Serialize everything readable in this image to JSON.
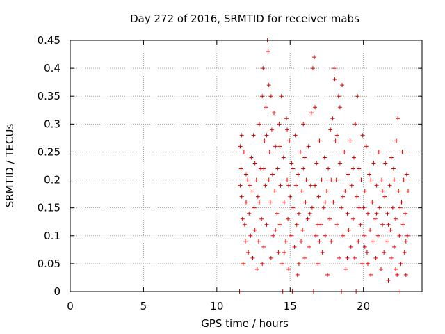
{
  "chart_data": {
    "type": "scatter",
    "title": "Day 272 of 2016, SRMTID for receiver mabs",
    "xlabel": "GPS time / hours",
    "ylabel": "SRMTID / TECUs",
    "xlim": [
      0,
      24
    ],
    "ylim": [
      0,
      0.45
    ],
    "x_ticks": [
      0,
      5,
      10,
      15,
      20
    ],
    "y_ticks": [
      0,
      0.05,
      0.1,
      0.15,
      0.2,
      0.25,
      0.3,
      0.35,
      0.4,
      0.45
    ],
    "x_tick_labels": [
      "0",
      "5",
      "10",
      "15",
      "20"
    ],
    "y_tick_labels": [
      "0",
      "0.05",
      "0.1",
      "0.15",
      "0.2",
      "0.25",
      "0.3",
      "0.35",
      "0.4",
      "0.45"
    ],
    "grid": true,
    "marker": "plus",
    "color": "#e00000",
    "series": [
      {
        "points": [
          [
            11.55,
            0.0
          ],
          [
            14.5,
            0.0
          ],
          [
            15.15,
            0.0
          ],
          [
            16.6,
            0.0
          ],
          [
            18.5,
            0.0
          ],
          [
            19.5,
            0.0
          ],
          [
            22.5,
            0.0
          ],
          [
            11.6,
            0.19
          ],
          [
            11.65,
            0.22
          ],
          [
            11.7,
            0.17
          ],
          [
            11.75,
            0.13
          ],
          [
            11.8,
            0.05
          ],
          [
            11.85,
            0.25
          ],
          [
            11.9,
            0.12
          ],
          [
            11.95,
            0.09
          ],
          [
            12.0,
            0.16
          ],
          [
            12.1,
            0.2
          ],
          [
            12.15,
            0.07
          ],
          [
            12.2,
            0.14
          ],
          [
            12.3,
            0.1
          ],
          [
            12.35,
            0.24
          ],
          [
            12.4,
            0.18
          ],
          [
            12.45,
            0.06
          ],
          [
            12.5,
            0.28
          ],
          [
            12.55,
            0.15
          ],
          [
            12.6,
            0.11
          ],
          [
            12.7,
            0.2
          ],
          [
            12.75,
            0.04
          ],
          [
            12.8,
            0.17
          ],
          [
            12.85,
            0.09
          ],
          [
            12.9,
            0.3
          ],
          [
            13.0,
            0.22
          ],
          [
            13.05,
            0.13
          ],
          [
            13.1,
            0.35
          ],
          [
            13.15,
            0.4
          ],
          [
            13.2,
            0.08
          ],
          [
            13.25,
            0.27
          ],
          [
            13.3,
            0.19
          ],
          [
            13.35,
            0.33
          ],
          [
            13.4,
            0.12
          ],
          [
            13.45,
            0.45
          ],
          [
            13.5,
            0.43
          ],
          [
            13.55,
            0.37
          ],
          [
            13.6,
            0.25
          ],
          [
            13.65,
            0.16
          ],
          [
            13.7,
            0.06
          ],
          [
            13.75,
            0.29
          ],
          [
            13.8,
            0.21
          ],
          [
            13.85,
            0.1
          ],
          [
            13.9,
            0.32
          ],
          [
            13.95,
            0.18
          ],
          [
            14.0,
            0.26
          ],
          [
            14.1,
            0.14
          ],
          [
            14.15,
            0.22
          ],
          [
            14.2,
            0.07
          ],
          [
            14.25,
            0.3
          ],
          [
            14.3,
            0.12
          ],
          [
            14.35,
            0.19
          ],
          [
            14.4,
            0.35
          ],
          [
            14.45,
            0.05
          ],
          [
            14.55,
            0.24
          ],
          [
            14.6,
            0.16
          ],
          [
            14.7,
            0.09
          ],
          [
            14.75,
            0.31
          ],
          [
            14.8,
            0.2
          ],
          [
            14.85,
            0.13
          ],
          [
            14.9,
            0.04
          ],
          [
            14.95,
            0.27
          ],
          [
            15.0,
            0.17
          ],
          [
            15.05,
            0.1
          ],
          [
            15.1,
            0.23
          ],
          [
            15.2,
            0.15
          ],
          [
            15.3,
            0.08
          ],
          [
            15.35,
            0.28
          ],
          [
            15.4,
            0.19
          ],
          [
            15.45,
            0.12
          ],
          [
            15.5,
            0.03
          ],
          [
            15.55,
            0.21
          ],
          [
            15.6,
            0.14
          ],
          [
            15.7,
            0.25
          ],
          [
            15.75,
            0.09
          ],
          [
            15.8,
            0.18
          ],
          [
            15.85,
            0.11
          ],
          [
            15.9,
            0.22
          ],
          [
            16.0,
            0.06
          ],
          [
            16.05,
            0.16
          ],
          [
            16.1,
            0.2
          ],
          [
            16.2,
            0.13
          ],
          [
            16.25,
            0.26
          ],
          [
            16.3,
            0.08
          ],
          [
            16.4,
            0.19
          ],
          [
            16.45,
            0.32
          ],
          [
            16.5,
            0.15
          ],
          [
            16.55,
            0.4
          ],
          [
            16.65,
            0.42
          ],
          [
            16.7,
            0.33
          ],
          [
            16.75,
            0.1
          ],
          [
            16.8,
            0.23
          ],
          [
            16.9,
            0.05
          ],
          [
            16.95,
            0.17
          ],
          [
            17.0,
            0.27
          ],
          [
            17.1,
            0.12
          ],
          [
            17.15,
            0.2
          ],
          [
            17.2,
            0.07
          ],
          [
            17.3,
            0.15
          ],
          [
            17.35,
            0.24
          ],
          [
            17.4,
            0.1
          ],
          [
            17.5,
            0.18
          ],
          [
            17.55,
            0.03
          ],
          [
            17.6,
            0.22
          ],
          [
            17.7,
            0.13
          ],
          [
            17.75,
            0.29
          ],
          [
            17.8,
            0.09
          ],
          [
            17.9,
            0.31
          ],
          [
            17.95,
            0.16
          ],
          [
            18.0,
            0.4
          ],
          [
            18.05,
            0.38
          ],
          [
            18.1,
            0.27
          ],
          [
            18.15,
            0.2
          ],
          [
            18.2,
            0.12
          ],
          [
            18.3,
            0.35
          ],
          [
            18.35,
            0.06
          ],
          [
            18.4,
            0.23
          ],
          [
            18.5,
            0.15
          ],
          [
            18.55,
            0.37
          ],
          [
            18.6,
            0.1
          ],
          [
            18.7,
            0.25
          ],
          [
            18.75,
            0.18
          ],
          [
            18.8,
            0.04
          ],
          [
            18.9,
            0.14
          ],
          [
            18.95,
            0.21
          ],
          [
            19.0,
            0.11
          ],
          [
            19.1,
            0.27
          ],
          [
            19.15,
            0.08
          ],
          [
            19.2,
            0.19
          ],
          [
            19.3,
            0.13
          ],
          [
            19.35,
            0.24
          ],
          [
            19.4,
            0.06
          ],
          [
            19.45,
            0.3
          ],
          [
            19.55,
            0.17
          ],
          [
            19.6,
            0.35
          ],
          [
            19.65,
            0.09
          ],
          [
            19.7,
            0.22
          ],
          [
            19.8,
            0.12
          ],
          [
            19.85,
            0.2
          ],
          [
            19.9,
            0.05
          ],
          [
            20.0,
            0.15
          ],
          [
            20.05,
            0.1
          ],
          [
            20.1,
            0.18
          ],
          [
            20.2,
            0.26
          ],
          [
            20.25,
            0.07
          ],
          [
            20.3,
            0.14
          ],
          [
            20.4,
            0.21
          ],
          [
            20.45,
            0.11
          ],
          [
            20.5,
            0.03
          ],
          [
            20.6,
            0.16
          ],
          [
            20.65,
            0.09
          ],
          [
            20.7,
            0.23
          ],
          [
            20.8,
            0.13
          ],
          [
            20.85,
            0.06
          ],
          [
            20.9,
            0.19
          ],
          [
            21.0,
            0.1
          ],
          [
            21.05,
            0.25
          ],
          [
            21.1,
            0.15
          ],
          [
            21.2,
            0.04
          ],
          [
            21.25,
            0.2
          ],
          [
            21.3,
            0.12
          ],
          [
            21.4,
            0.07
          ],
          [
            21.45,
            0.17
          ],
          [
            21.5,
            0.23
          ],
          [
            21.6,
            0.09
          ],
          [
            21.65,
            0.14
          ],
          [
            21.7,
            0.02
          ],
          [
            21.8,
            0.19
          ],
          [
            21.85,
            0.11
          ],
          [
            21.9,
            0.06
          ],
          [
            22.0,
            0.15
          ],
          [
            22.05,
            0.22
          ],
          [
            22.1,
            0.08
          ],
          [
            22.2,
            0.13
          ],
          [
            22.25,
            0.27
          ],
          [
            22.3,
            0.03
          ],
          [
            22.35,
            0.31
          ],
          [
            22.4,
            0.18
          ],
          [
            22.45,
            0.1
          ],
          [
            22.55,
            0.05
          ],
          [
            22.6,
            0.16
          ],
          [
            22.65,
            0.25
          ],
          [
            22.7,
            0.12
          ],
          [
            22.75,
            0.2
          ],
          [
            22.8,
            0.07
          ],
          [
            22.85,
            0.14
          ],
          [
            22.9,
            0.03
          ],
          [
            22.95,
            0.21
          ],
          [
            23.0,
            0.1
          ],
          [
            23.05,
            0.18
          ],
          [
            11.6,
            0.26
          ],
          [
            11.7,
            0.28
          ],
          [
            12.0,
            0.21
          ],
          [
            12.25,
            0.19
          ],
          [
            12.6,
            0.23
          ],
          [
            12.9,
            0.16
          ],
          [
            13.2,
            0.22
          ],
          [
            13.4,
            0.28
          ],
          [
            13.55,
            0.2
          ],
          [
            13.7,
            0.35
          ],
          [
            14.0,
            0.11
          ],
          [
            14.3,
            0.26
          ],
          [
            14.6,
            0.07
          ],
          [
            14.9,
            0.19
          ],
          [
            15.2,
            0.22
          ],
          [
            15.6,
            0.05
          ],
          [
            16.0,
            0.24
          ],
          [
            16.35,
            0.14
          ],
          [
            16.7,
            0.19
          ],
          [
            17.0,
            0.09
          ],
          [
            17.4,
            0.16
          ],
          [
            17.8,
            0.2
          ],
          [
            18.2,
            0.28
          ],
          [
            18.6,
            0.17
          ],
          [
            18.9,
            0.06
          ],
          [
            19.3,
            0.22
          ],
          [
            19.7,
            0.15
          ],
          [
            20.1,
            0.08
          ],
          [
            20.5,
            0.2
          ],
          [
            20.9,
            0.14
          ],
          [
            21.3,
            0.18
          ],
          [
            21.7,
            0.12
          ],
          [
            22.1,
            0.2
          ],
          [
            22.5,
            0.15
          ],
          [
            22.9,
            0.09
          ],
          [
            13.1,
            0.05
          ],
          [
            14.8,
            0.29
          ],
          [
            16.9,
            0.12
          ],
          [
            18.4,
            0.33
          ],
          [
            20.3,
            0.05
          ],
          [
            21.9,
            0.24
          ],
          [
            15.9,
            0.3
          ],
          [
            19.95,
            0.28
          ],
          [
            22.2,
            0.04
          ]
        ]
      }
    ]
  }
}
